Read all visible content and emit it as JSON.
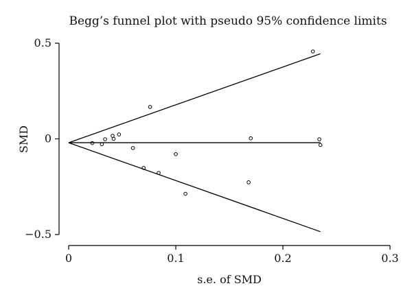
{
  "chart_data": {
    "type": "scatter",
    "title": "Begg’s funnel plot with pseudo 95% confidence limits",
    "xlabel": "s.e. of SMD",
    "ylabel": "SMD",
    "xlim": [
      0,
      0.3
    ],
    "ylim": [
      -0.5,
      0.5
    ],
    "x_ticks": [
      0,
      0.1,
      0.2,
      0.3
    ],
    "x_tick_labels": [
      "0",
      "0.1",
      "0.2",
      "0.3"
    ],
    "y_ticks": [
      -0.5,
      0,
      0.5
    ],
    "y_tick_labels": [
      "−0.5",
      "0",
      "0.5"
    ],
    "grid": false,
    "pooled_estimate": -0.02,
    "upper_limit": {
      "x": [
        0,
        0.235
      ],
      "y": [
        -0.02,
        0.445
      ]
    },
    "lower_limit": {
      "x": [
        0,
        0.235
      ],
      "y": [
        -0.02,
        -0.485
      ]
    },
    "points": [
      {
        "x": 0.022,
        "y": -0.022
      },
      {
        "x": 0.031,
        "y": -0.028
      },
      {
        "x": 0.034,
        "y": -0.002
      },
      {
        "x": 0.041,
        "y": 0.016
      },
      {
        "x": 0.042,
        "y": 0.0
      },
      {
        "x": 0.047,
        "y": 0.023
      },
      {
        "x": 0.06,
        "y": -0.048
      },
      {
        "x": 0.07,
        "y": -0.152
      },
      {
        "x": 0.076,
        "y": 0.167
      },
      {
        "x": 0.084,
        "y": -0.178
      },
      {
        "x": 0.1,
        "y": -0.08
      },
      {
        "x": 0.109,
        "y": -0.287
      },
      {
        "x": 0.168,
        "y": -0.227
      },
      {
        "x": 0.17,
        "y": 0.003
      },
      {
        "x": 0.228,
        "y": 0.457
      },
      {
        "x": 0.234,
        "y": -0.002
      },
      {
        "x": 0.235,
        "y": -0.032
      }
    ]
  }
}
